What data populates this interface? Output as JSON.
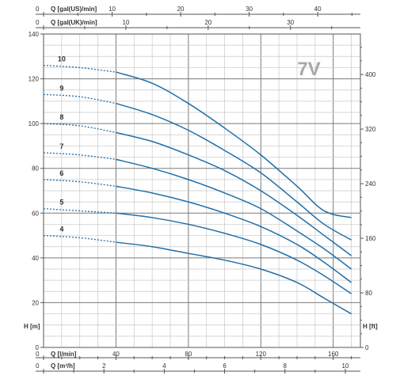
{
  "chart_data": {
    "type": "line",
    "model_label": "7V",
    "colors": {
      "curve": "#1f6fa9",
      "model_label": "#a8a8a8",
      "grid_fine": "#c8c8c8",
      "grid_major": "#7a7a7a",
      "axis": "#555555",
      "text": "#333333"
    },
    "x_axis": {
      "label": "Q [l/min]",
      "lim": [
        0,
        175
      ],
      "ticks": [
        {
          "v": 0,
          "label": "0"
        },
        {
          "v": 40,
          "label": "40"
        },
        {
          "v": 80,
          "label": "80"
        },
        {
          "v": 120,
          "label": "120"
        },
        {
          "v": 160,
          "label": "160"
        }
      ]
    },
    "x_axis_m3h": {
      "label": "Q [m³/h]",
      "ticks": [
        {
          "v": 0,
          "label": "0"
        },
        {
          "v": 2,
          "label": "2"
        },
        {
          "v": 4,
          "label": "4"
        },
        {
          "v": 6,
          "label": "6"
        },
        {
          "v": 8,
          "label": "8"
        },
        {
          "v": 10,
          "label": "10"
        }
      ]
    },
    "x_axis_us": {
      "label": "Q [gal(US)/min]",
      "ticks": [
        {
          "v": 0,
          "label": "0"
        },
        {
          "v": 10,
          "label": "10"
        },
        {
          "v": 20,
          "label": "20"
        },
        {
          "v": 30,
          "label": "30"
        },
        {
          "v": 40,
          "label": "40"
        }
      ]
    },
    "x_axis_uk": {
      "label": "Q [gal(UK)/min]",
      "ticks": [
        {
          "v": 0,
          "label": "0"
        },
        {
          "v": 10,
          "label": "10"
        },
        {
          "v": 20,
          "label": "20"
        },
        {
          "v": 30,
          "label": "30"
        }
      ]
    },
    "y_axis": {
      "label": "H [m]",
      "lim": [
        0,
        140
      ],
      "ticks": [
        {
          "v": 0,
          "label": "0"
        },
        {
          "v": 20,
          "label": "20"
        },
        {
          "v": 40,
          "label": "40"
        },
        {
          "v": 60,
          "label": "60"
        },
        {
          "v": 80,
          "label": "80"
        },
        {
          "v": 100,
          "label": "100"
        },
        {
          "v": 120,
          "label": "120"
        },
        {
          "v": 140,
          "label": "140"
        }
      ]
    },
    "y_axis_ft": {
      "label": "H [ft]",
      "ticks": [
        {
          "v": 0,
          "label": "0"
        },
        {
          "v": 80,
          "label": "80"
        },
        {
          "v": 160,
          "label": "160"
        },
        {
          "v": 240,
          "label": "240"
        },
        {
          "v": 320,
          "label": "320"
        },
        {
          "v": 400,
          "label": "400"
        }
      ]
    },
    "dashed_until_x": 40,
    "series": [
      {
        "name": "10",
        "x": [
          0,
          20,
          40,
          60,
          80,
          100,
          120,
          140,
          155,
          170
        ],
        "y": [
          126,
          125,
          123,
          118,
          109,
          98,
          86,
          72,
          61,
          58
        ]
      },
      {
        "name": "9",
        "x": [
          0,
          20,
          40,
          60,
          80,
          100,
          120,
          140,
          155,
          170
        ],
        "y": [
          113,
          112,
          109,
          104,
          97,
          88,
          78,
          65,
          55,
          48
        ]
      },
      {
        "name": "8",
        "x": [
          0,
          20,
          40,
          60,
          80,
          100,
          120,
          140,
          155,
          170
        ],
        "y": [
          100,
          99,
          96,
          92,
          86,
          79,
          70,
          59,
          50,
          41
        ]
      },
      {
        "name": "7",
        "x": [
          0,
          20,
          40,
          60,
          80,
          100,
          120,
          140,
          155,
          170
        ],
        "y": [
          87,
          86,
          84,
          80,
          75,
          69,
          62,
          52,
          44,
          35
        ]
      },
      {
        "name": "6",
        "x": [
          0,
          20,
          40,
          60,
          80,
          100,
          120,
          140,
          155,
          170
        ],
        "y": [
          75,
          74,
          72,
          69,
          65,
          60,
          54,
          46,
          38,
          29
        ]
      },
      {
        "name": "5",
        "x": [
          0,
          20,
          40,
          60,
          80,
          100,
          120,
          140,
          155,
          170
        ],
        "y": [
          62,
          61,
          60,
          58,
          55,
          51,
          46,
          39,
          32,
          24
        ]
      },
      {
        "name": "4",
        "x": [
          0,
          20,
          40,
          60,
          80,
          100,
          120,
          140,
          155,
          170
        ],
        "y": [
          50,
          49,
          47,
          45,
          42,
          39,
          35,
          29,
          22,
          15
        ]
      }
    ]
  }
}
